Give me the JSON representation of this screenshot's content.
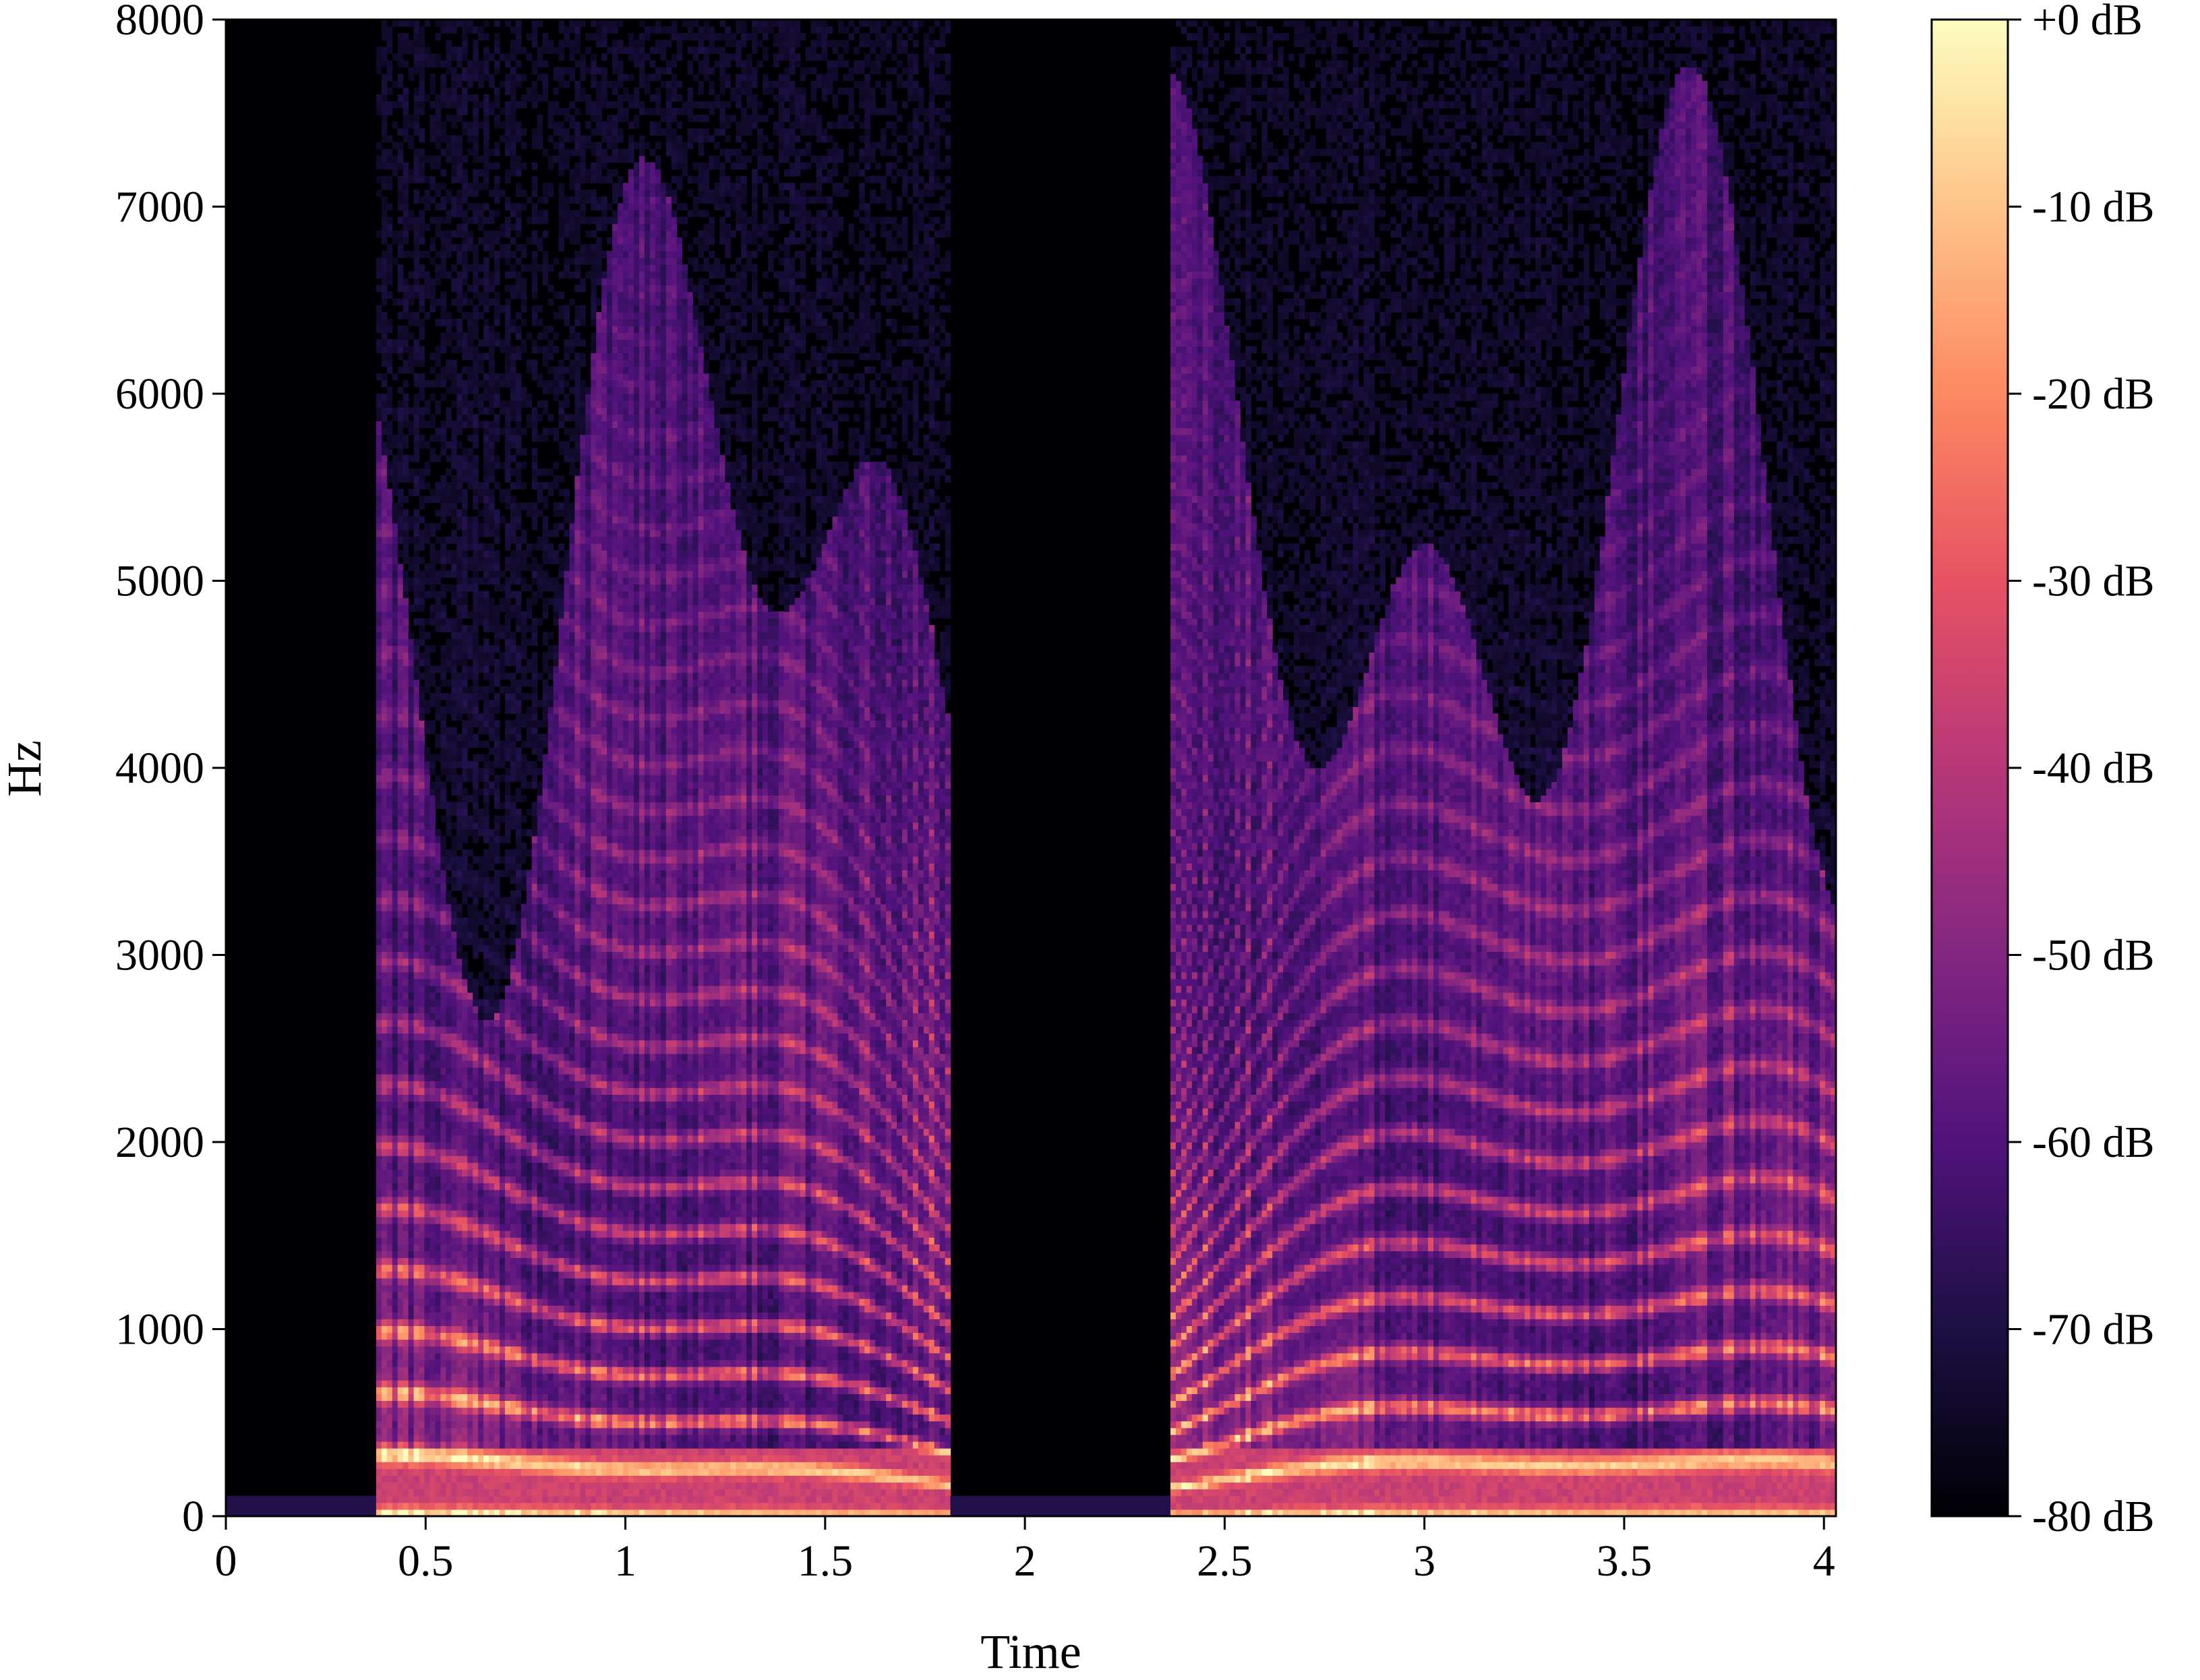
{
  "chart_data": {
    "type": "heatmap",
    "title": "",
    "xlabel": "Time",
    "ylabel": "Hz",
    "xlim": [
      0,
      4.03
    ],
    "ylim": [
      0,
      8000
    ],
    "x_ticks": [
      0,
      0.5,
      1,
      1.5,
      2,
      2.5,
      3,
      3.5,
      4
    ],
    "x_tick_labels": [
      "0",
      "0.5",
      "1",
      "1.5",
      "2",
      "2.5",
      "3",
      "3.5",
      "4"
    ],
    "y_ticks": [
      0,
      1000,
      2000,
      3000,
      4000,
      5000,
      6000,
      7000,
      8000
    ],
    "y_tick_labels": [
      "0",
      "1000",
      "2000",
      "3000",
      "4000",
      "5000",
      "6000",
      "7000",
      "8000"
    ],
    "colormap": "magma",
    "color_stops": [
      "#000004",
      "#1c1044",
      "#51127c",
      "#832681",
      "#b73779",
      "#e75263",
      "#fc8961",
      "#fec488",
      "#fcfdbf"
    ],
    "colorbar": {
      "range": [
        -80,
        0
      ],
      "ticks": [
        0,
        -10,
        -20,
        -30,
        -40,
        -50,
        -60,
        -70,
        -80
      ],
      "tick_labels": [
        "+0 dB",
        "-10 dB",
        "-20 dB",
        "-30 dB",
        "-40 dB",
        "-50 dB",
        "-60 dB",
        "-70 dB",
        "-80 dB"
      ]
    },
    "grid": false,
    "speech_segments_s": [
      [
        0.37,
        1.82
      ],
      [
        2.37,
        4.03
      ]
    ],
    "silence_segments_s": [
      [
        0,
        0.37
      ],
      [
        1.82,
        2.37
      ]
    ]
  }
}
